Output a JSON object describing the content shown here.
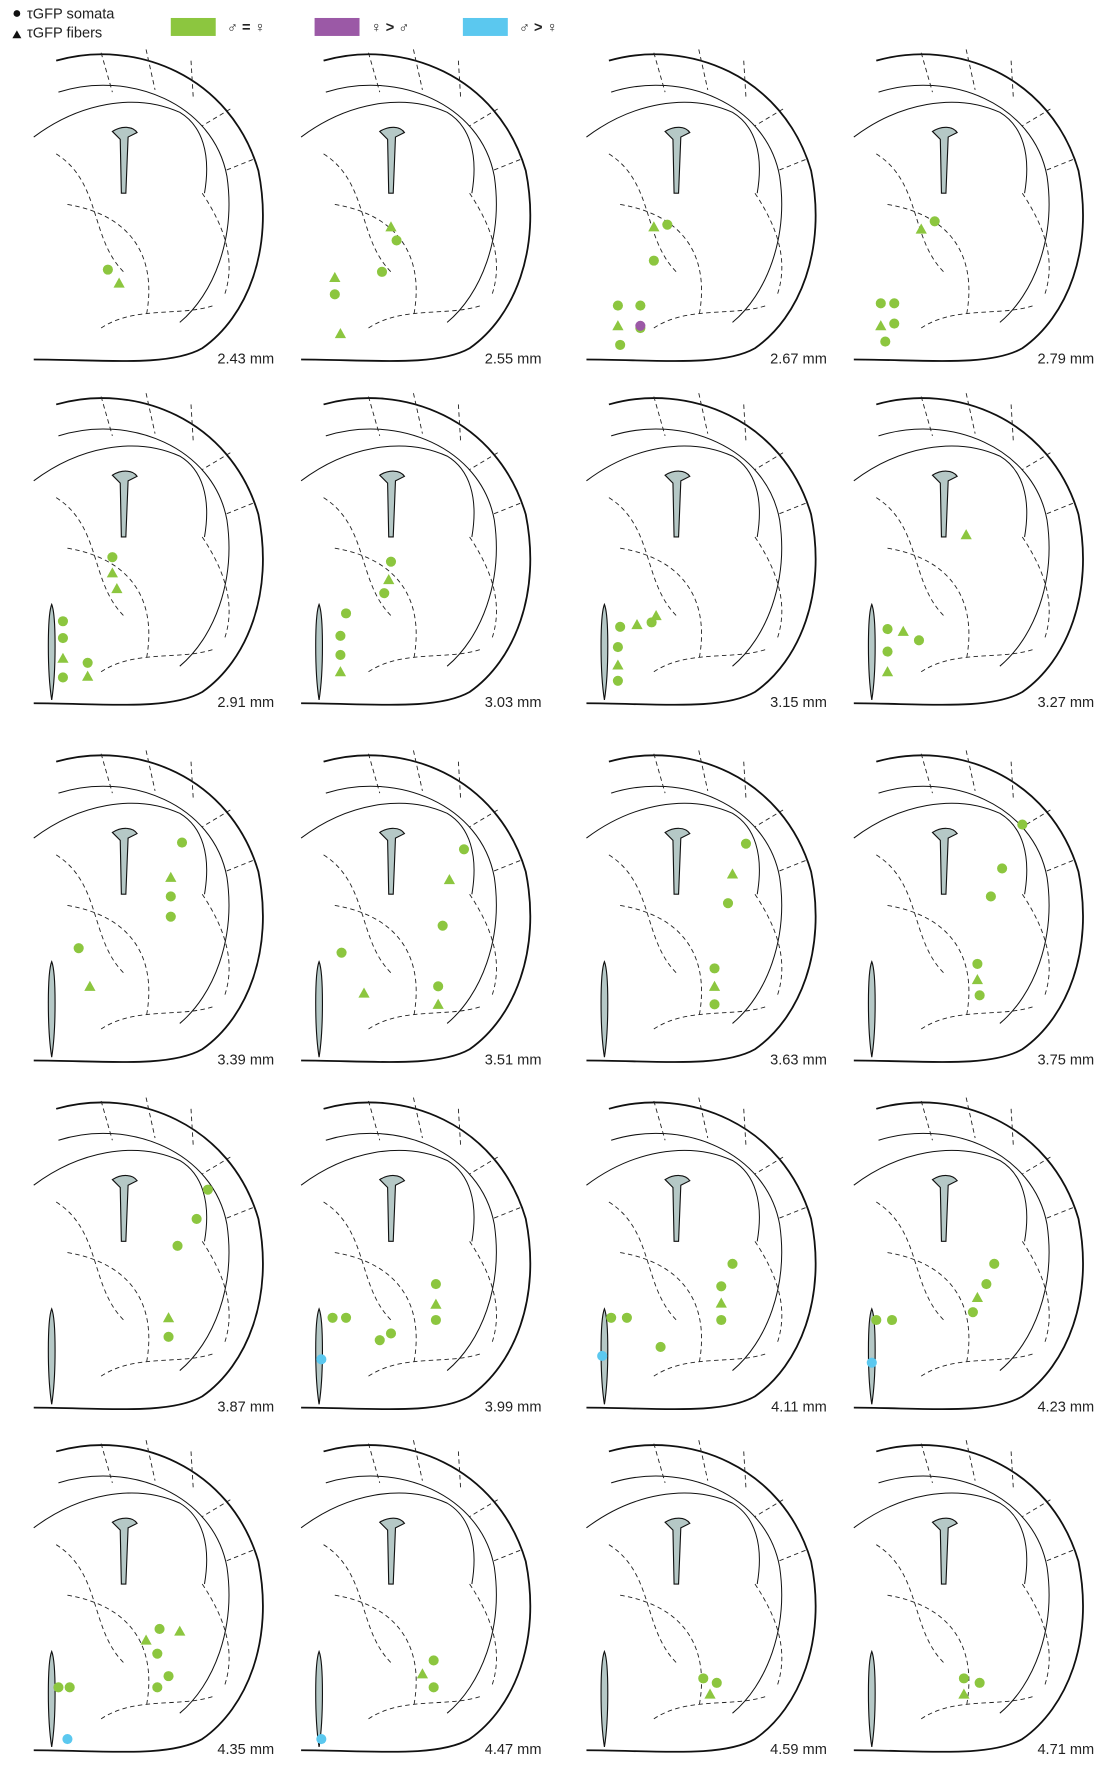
{
  "legend": {
    "symbols": [
      {
        "label": "τGFP somata"
      },
      {
        "label": "τGFP fibers"
      }
    ],
    "colors": [
      {
        "label": "♂ = ♀",
        "color": "#8cc63f"
      },
      {
        "label": "♀ > ♂",
        "color": "#9b59a6"
      },
      {
        "label": "♂ > ♀",
        "color": "#5bc8ef"
      }
    ]
  },
  "panels": [
    {
      "label": "2.43 mm"
    },
    {
      "label": "2.55 mm"
    },
    {
      "label": "2.67 mm"
    },
    {
      "label": "2.79 mm"
    },
    {
      "label": "2.91 mm"
    },
    {
      "label": "3.03 mm"
    },
    {
      "label": "3.15 mm"
    },
    {
      "label": "3.27 mm"
    },
    {
      "label": "3.39 mm"
    },
    {
      "label": "3.51 mm"
    },
    {
      "label": "3.63 mm"
    },
    {
      "label": "3.75 mm"
    },
    {
      "label": "3.87 mm"
    },
    {
      "label": "3.99 mm"
    },
    {
      "label": "4.11 mm"
    },
    {
      "label": "4.23 mm"
    },
    {
      "label": "4.35 mm"
    },
    {
      "label": "4.47 mm"
    },
    {
      "label": "4.59 mm"
    },
    {
      "label": "4.71 mm"
    }
  ]
}
